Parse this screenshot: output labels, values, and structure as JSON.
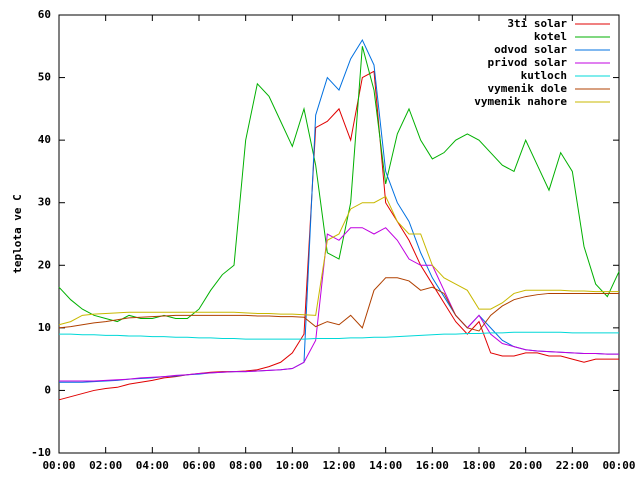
{
  "chart_data": {
    "type": "line",
    "ylabel": "teplota ve C",
    "x": [
      0,
      0.5,
      1,
      1.5,
      2,
      2.5,
      3,
      3.5,
      4,
      4.5,
      5,
      5.5,
      6,
      6.5,
      7,
      7.5,
      8,
      8.5,
      9,
      9.5,
      10,
      10.5,
      11,
      11.5,
      12,
      12.5,
      13,
      13.5,
      14,
      14.5,
      15,
      15.5,
      16,
      16.5,
      17,
      17.5,
      18,
      18.5,
      19,
      19.5,
      20,
      20.5,
      21,
      21.5,
      22,
      22.5,
      23,
      23.5,
      24
    ],
    "xlim": [
      0,
      24
    ],
    "xticks": [
      {
        "value": 0,
        "label": "00:00"
      },
      {
        "value": 2,
        "label": "02:00"
      },
      {
        "value": 4,
        "label": "04:00"
      },
      {
        "value": 6,
        "label": "06:00"
      },
      {
        "value": 8,
        "label": "08:00"
      },
      {
        "value": 10,
        "label": "10:00"
      },
      {
        "value": 12,
        "label": "12:00"
      },
      {
        "value": 14,
        "label": "14:00"
      },
      {
        "value": 16,
        "label": "16:00"
      },
      {
        "value": 18,
        "label": "18:00"
      },
      {
        "value": 20,
        "label": "20:00"
      },
      {
        "value": 22,
        "label": "22:00"
      },
      {
        "value": 24,
        "label": "00:00"
      }
    ],
    "ylim": [
      -10,
      60
    ],
    "yticks": [
      -10,
      0,
      10,
      20,
      30,
      40,
      50,
      60
    ],
    "grid": false,
    "legend": "top-right",
    "series": [
      {
        "name": "3ti solar",
        "color": "#e00000",
        "values": [
          -1.5,
          -1,
          -0.5,
          0,
          0.3,
          0.5,
          1,
          1.3,
          1.6,
          2,
          2.2,
          2.5,
          2.7,
          2.9,
          3,
          3,
          3.1,
          3.3,
          3.8,
          4.5,
          6,
          9,
          42,
          43,
          45,
          40,
          50,
          51,
          30,
          27,
          24,
          20,
          17,
          14,
          11,
          9,
          11,
          6,
          5.5,
          5.5,
          6,
          6,
          5.5,
          5.5,
          5,
          4.5,
          5,
          5,
          5
        ]
      },
      {
        "name": "kotel",
        "color": "#00b000",
        "values": [
          16.5,
          14.5,
          13,
          12,
          11.5,
          11,
          12,
          11.5,
          11.5,
          12,
          11.5,
          11.5,
          13,
          16,
          18.5,
          20,
          40,
          49,
          47,
          43,
          39,
          45,
          36,
          22,
          21,
          30,
          55,
          48,
          33,
          41,
          45,
          40,
          37,
          38,
          40,
          41,
          40,
          38,
          36,
          35,
          40,
          36,
          32,
          38,
          35,
          23,
          17,
          15,
          19
        ]
      },
      {
        "name": "odvod solar",
        "color": "#0070e0",
        "values": [
          1.3,
          1.3,
          1.3,
          1.4,
          1.5,
          1.6,
          1.8,
          1.9,
          2,
          2.2,
          2.3,
          2.5,
          2.6,
          2.8,
          2.9,
          3,
          3,
          3.1,
          3.2,
          3.3,
          3.5,
          4.5,
          44,
          50,
          48,
          53,
          56,
          52,
          35,
          30,
          27,
          22,
          18,
          15,
          12,
          10,
          12,
          10,
          8,
          7,
          6.5,
          6.3,
          6.2,
          6.1,
          6,
          5.9,
          5.9,
          5.8,
          5.8
        ]
      },
      {
        "name": "privod solar",
        "color": "#c000e0",
        "values": [
          1.5,
          1.5,
          1.5,
          1.5,
          1.6,
          1.7,
          1.8,
          2,
          2.1,
          2.2,
          2.4,
          2.5,
          2.7,
          2.8,
          2.9,
          3,
          3,
          3.1,
          3.2,
          3.3,
          3.5,
          4.5,
          8,
          25,
          24,
          26,
          26,
          25,
          26,
          24,
          21,
          20,
          20,
          16,
          12,
          10,
          12,
          9,
          7.5,
          7,
          6.5,
          6.3,
          6.2,
          6.1,
          6,
          5.9,
          5.9,
          5.8,
          5.8
        ]
      },
      {
        "name": "kutloch",
        "color": "#00d8d8",
        "values": [
          9,
          9,
          8.9,
          8.9,
          8.8,
          8.8,
          8.7,
          8.7,
          8.6,
          8.6,
          8.5,
          8.5,
          8.4,
          8.4,
          8.3,
          8.3,
          8.2,
          8.2,
          8.2,
          8.2,
          8.2,
          8.2,
          8.3,
          8.3,
          8.3,
          8.4,
          8.4,
          8.5,
          8.5,
          8.6,
          8.7,
          8.8,
          8.9,
          9,
          9,
          9.1,
          9.1,
          9.2,
          9.2,
          9.3,
          9.3,
          9.3,
          9.3,
          9.3,
          9.2,
          9.2,
          9.2,
          9.2,
          9.2
        ]
      },
      {
        "name": "vymenik dole",
        "color": "#b04000",
        "values": [
          10,
          10.2,
          10.5,
          10.8,
          11,
          11.3,
          11.6,
          11.7,
          11.8,
          11.9,
          12,
          12,
          12,
          12,
          12,
          12,
          12,
          11.9,
          11.9,
          11.8,
          11.8,
          11.7,
          10.2,
          11,
          10.5,
          12,
          10,
          16,
          18,
          18,
          17.5,
          16,
          16.5,
          15.5,
          12,
          10,
          9.5,
          12,
          13.5,
          14.5,
          15,
          15.3,
          15.5,
          15.5,
          15.5,
          15.5,
          15.5,
          15.5,
          15.5
        ]
      },
      {
        "name": "vymenik nahore",
        "color": "#c8b800",
        "values": [
          10.5,
          11,
          12,
          12.2,
          12.3,
          12.4,
          12.5,
          12.5,
          12.5,
          12.5,
          12.5,
          12.5,
          12.5,
          12.5,
          12.5,
          12.5,
          12.4,
          12.3,
          12.3,
          12.2,
          12.2,
          12.1,
          12,
          24,
          25,
          29,
          30,
          30,
          31,
          27,
          25,
          25,
          20,
          18,
          17,
          16,
          13,
          13,
          14,
          15.5,
          16,
          16,
          16,
          16,
          15.9,
          15.9,
          15.8,
          15.8,
          15.8
        ]
      }
    ]
  }
}
